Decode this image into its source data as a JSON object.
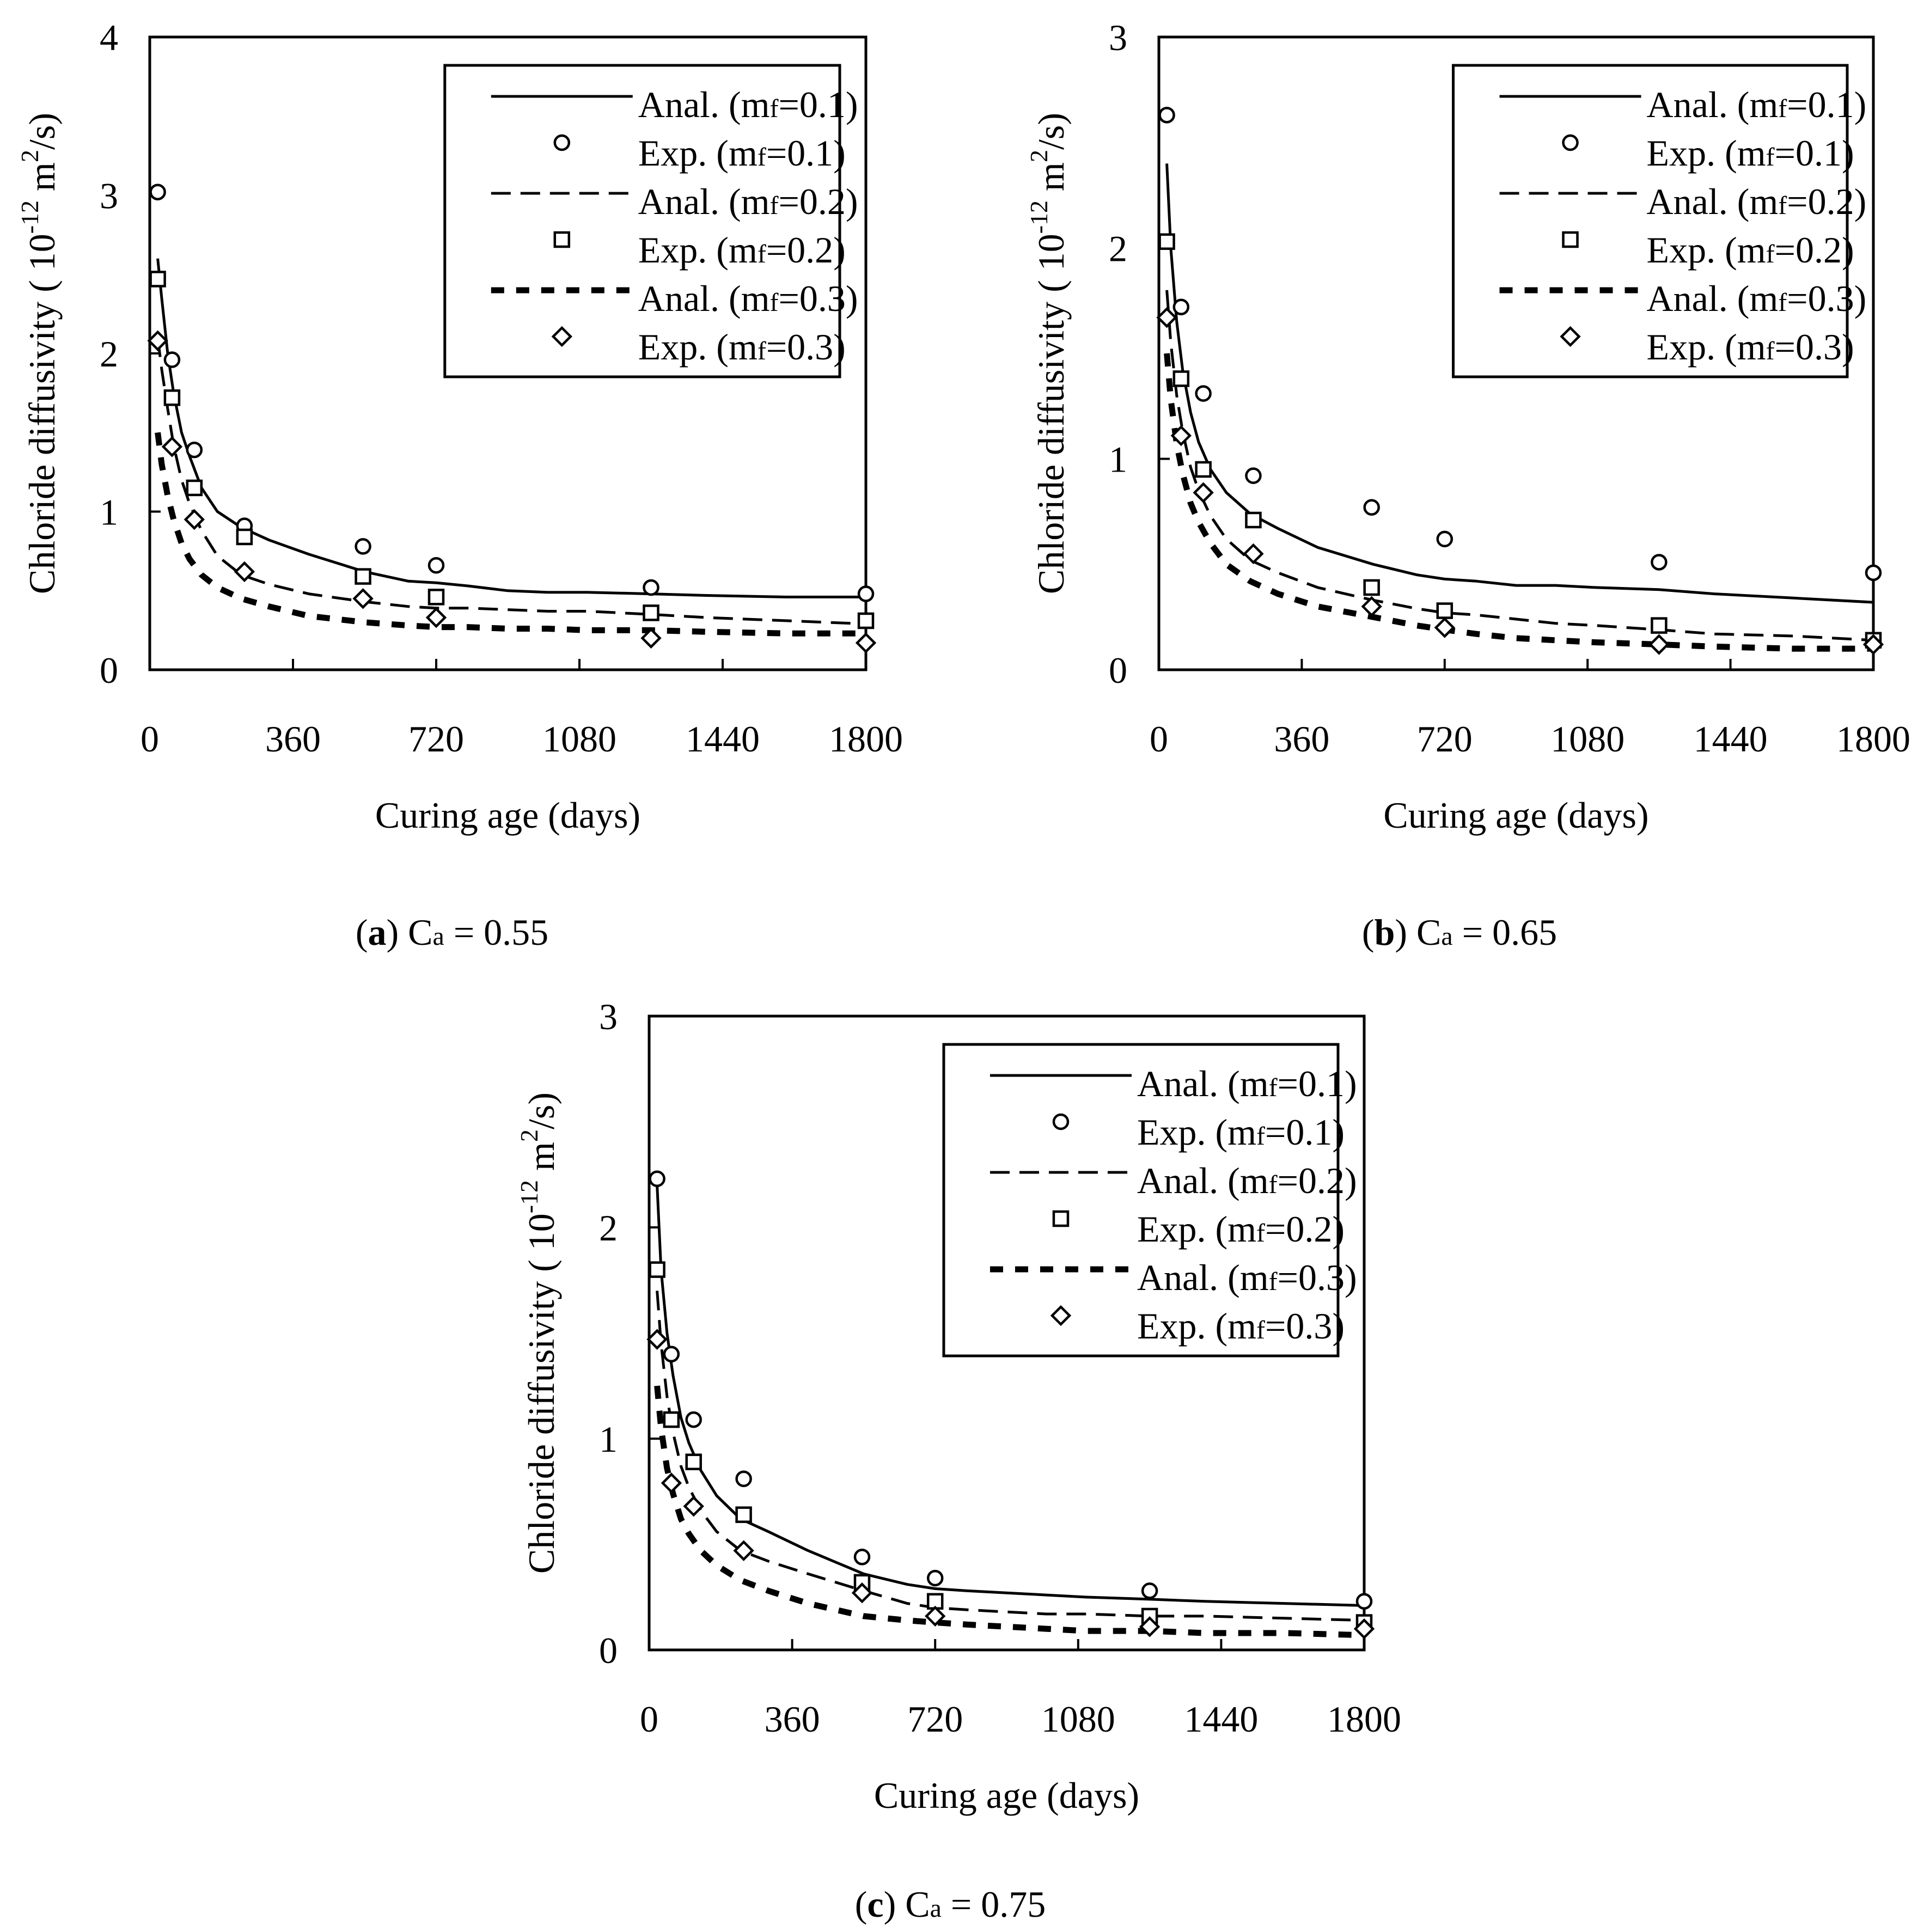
{
  "figure": {
    "panels": [
      "(a)",
      "(b)",
      "(c)"
    ]
  },
  "chart_data": [
    {
      "type": "line",
      "panel_letter": "a",
      "caption_rest": " C",
      "caption_sub": "a",
      "caption_value": " = 0.55",
      "xlabel": "Curing age (days)",
      "ylabel": "Chloride diffusivity ( 10",
      "ylabel_exp": "-12",
      "ylabel_unit": " m",
      "ylabel_unit_exp": "2",
      "ylabel_end": "/s)",
      "xlim": [
        0,
        1800
      ],
      "ylim": [
        0,
        4
      ],
      "xticks": [
        0,
        360,
        720,
        1080,
        1440,
        1800
      ],
      "yticks": [
        0,
        1,
        2,
        3,
        4
      ],
      "legend_position": "top-right",
      "analytical": [
        {
          "name": "Anal. (mf=0.1)",
          "legend_pre": "Anal. (m",
          "legend_sub": "f",
          "legend_post": "=0.1)",
          "style": "solid",
          "x": [
            20,
            30,
            45,
            60,
            80,
            100,
            130,
            170,
            230,
            300,
            400,
            540,
            650,
            720,
            800,
            900,
            1000,
            1100,
            1260,
            1400,
            1600,
            1800
          ],
          "y": [
            2.6,
            2.35,
            2.0,
            1.75,
            1.5,
            1.35,
            1.15,
            1.0,
            0.9,
            0.82,
            0.73,
            0.62,
            0.56,
            0.55,
            0.53,
            0.5,
            0.49,
            0.49,
            0.48,
            0.47,
            0.46,
            0.46
          ]
        },
        {
          "name": "Anal. (mf=0.2)",
          "legend_pre": "Anal. (m",
          "legend_sub": "f",
          "legend_post": "=0.2)",
          "style": "dash",
          "x": [
            20,
            30,
            45,
            60,
            80,
            100,
            130,
            170,
            230,
            300,
            400,
            540,
            650,
            720,
            800,
            900,
            1000,
            1100,
            1260,
            1400,
            1600,
            1800
          ],
          "y": [
            2.1,
            1.9,
            1.65,
            1.42,
            1.2,
            1.05,
            0.88,
            0.72,
            0.6,
            0.54,
            0.48,
            0.43,
            0.4,
            0.39,
            0.39,
            0.38,
            0.37,
            0.37,
            0.35,
            0.33,
            0.31,
            0.29
          ]
        },
        {
          "name": "Anal. (mf=0.3)",
          "legend_pre": "Anal. (m",
          "legend_sub": "f",
          "legend_post": "=0.3)",
          "style": "bolddash",
          "x": [
            20,
            30,
            45,
            60,
            80,
            100,
            130,
            170,
            230,
            300,
            400,
            540,
            650,
            720,
            800,
            900,
            1000,
            1100,
            1260,
            1400,
            1600,
            1800
          ],
          "y": [
            1.5,
            1.3,
            1.1,
            0.95,
            0.8,
            0.7,
            0.6,
            0.52,
            0.45,
            0.4,
            0.34,
            0.3,
            0.28,
            0.27,
            0.27,
            0.26,
            0.26,
            0.25,
            0.25,
            0.24,
            0.23,
            0.23
          ]
        }
      ],
      "experimental": [
        {
          "name": "Exp. (mf=0.1)",
          "legend_pre": "Exp. (m",
          "legend_sub": "f",
          "legend_post": "=0.1)",
          "marker": "circle",
          "x": [
            20,
            56,
            112,
            238,
            536,
            720,
            1260,
            1800
          ],
          "y": [
            3.02,
            1.96,
            1.39,
            0.91,
            0.78,
            0.66,
            0.52,
            0.48
          ]
        },
        {
          "name": "Exp. (mf=0.2)",
          "legend_pre": "Exp. (m",
          "legend_sub": "f",
          "legend_post": "=0.2)",
          "marker": "square",
          "x": [
            20,
            56,
            112,
            238,
            536,
            720,
            1260,
            1800
          ],
          "y": [
            2.47,
            1.72,
            1.15,
            0.84,
            0.59,
            0.46,
            0.36,
            0.31
          ]
        },
        {
          "name": "Exp. (mf=0.3)",
          "legend_pre": "Exp. (m",
          "legend_sub": "f",
          "legend_post": "=0.3)",
          "marker": "diamond",
          "x": [
            20,
            56,
            112,
            238,
            536,
            720,
            1260,
            1800
          ],
          "y": [
            2.08,
            1.41,
            0.95,
            0.62,
            0.45,
            0.33,
            0.2,
            0.17
          ]
        }
      ]
    },
    {
      "type": "line",
      "panel_letter": "b",
      "caption_rest": " C",
      "caption_sub": "a",
      "caption_value": " = 0.65",
      "xlabel": "Curing age (days)",
      "ylabel": "Chloride diffusivity ( 10",
      "ylabel_exp": "-12",
      "ylabel_unit": " m",
      "ylabel_unit_exp": "2",
      "ylabel_end": "/s)",
      "xlim": [
        0,
        1800
      ],
      "ylim": [
        0,
        3
      ],
      "xticks": [
        0,
        360,
        720,
        1080,
        1440,
        1800
      ],
      "yticks": [
        0,
        1,
        2,
        3
      ],
      "legend_position": "top-right",
      "analytical": [
        {
          "name": "Anal. (mf=0.1)",
          "legend_pre": "Anal. (m",
          "legend_sub": "f",
          "legend_post": "=0.1)",
          "style": "solid",
          "x": [
            20,
            30,
            45,
            60,
            80,
            100,
            130,
            170,
            230,
            300,
            400,
            540,
            650,
            720,
            800,
            900,
            1000,
            1100,
            1260,
            1400,
            1600,
            1800
          ],
          "y": [
            2.4,
            2.0,
            1.65,
            1.42,
            1.22,
            1.08,
            0.95,
            0.84,
            0.74,
            0.67,
            0.58,
            0.5,
            0.45,
            0.43,
            0.42,
            0.4,
            0.4,
            0.39,
            0.38,
            0.36,
            0.34,
            0.32
          ]
        },
        {
          "name": "Anal. (mf=0.2)",
          "legend_pre": "Anal. (m",
          "legend_sub": "f",
          "legend_post": "=0.2)",
          "style": "dash",
          "x": [
            20,
            30,
            45,
            60,
            80,
            100,
            130,
            170,
            230,
            300,
            400,
            540,
            650,
            720,
            800,
            900,
            1000,
            1100,
            1260,
            1400,
            1600,
            1800
          ],
          "y": [
            1.8,
            1.55,
            1.3,
            1.13,
            0.96,
            0.85,
            0.73,
            0.62,
            0.52,
            0.46,
            0.39,
            0.33,
            0.29,
            0.27,
            0.26,
            0.24,
            0.22,
            0.21,
            0.19,
            0.17,
            0.16,
            0.14
          ]
        },
        {
          "name": "Anal. (mf=0.3)",
          "legend_pre": "Anal. (m",
          "legend_sub": "f",
          "legend_post": "=0.3)",
          "style": "bolddash",
          "x": [
            20,
            30,
            45,
            60,
            80,
            100,
            130,
            170,
            230,
            300,
            400,
            540,
            650,
            720,
            800,
            900,
            1000,
            1100,
            1260,
            1400,
            1600,
            1800
          ],
          "y": [
            1.5,
            1.28,
            1.07,
            0.93,
            0.79,
            0.7,
            0.6,
            0.5,
            0.42,
            0.36,
            0.3,
            0.25,
            0.21,
            0.19,
            0.17,
            0.15,
            0.14,
            0.13,
            0.12,
            0.11,
            0.1,
            0.1
          ]
        }
      ],
      "experimental": [
        {
          "name": "Exp. (mf=0.1)",
          "legend_pre": "Exp. (m",
          "legend_sub": "f",
          "legend_post": "=0.1)",
          "marker": "circle",
          "x": [
            20,
            56,
            112,
            238,
            536,
            720,
            1260,
            1800
          ],
          "y": [
            2.63,
            1.72,
            1.31,
            0.92,
            0.77,
            0.62,
            0.51,
            0.46
          ]
        },
        {
          "name": "Exp. (mf=0.2)",
          "legend_pre": "Exp. (m",
          "legend_sub": "f",
          "legend_post": "=0.2)",
          "marker": "square",
          "x": [
            20,
            56,
            112,
            238,
            536,
            720,
            1260,
            1800
          ],
          "y": [
            2.03,
            1.38,
            0.95,
            0.71,
            0.39,
            0.28,
            0.21,
            0.14
          ]
        },
        {
          "name": "Exp. (mf=0.3)",
          "legend_pre": "Exp. (m",
          "legend_sub": "f",
          "legend_post": "=0.3)",
          "marker": "diamond",
          "x": [
            20,
            56,
            112,
            238,
            536,
            720,
            1260,
            1800
          ],
          "y": [
            1.67,
            1.11,
            0.84,
            0.55,
            0.3,
            0.2,
            0.12,
            0.12
          ]
        }
      ]
    },
    {
      "type": "line",
      "panel_letter": "c",
      "caption_rest": " C",
      "caption_sub": "a",
      "caption_value": " = 0.75",
      "xlabel": "Curing age (days)",
      "ylabel": "Chloride diffusivity ( 10",
      "ylabel_exp": "-12",
      "ylabel_unit": " m",
      "ylabel_unit_exp": "2",
      "ylabel_end": "/s)",
      "xlim": [
        0,
        1800
      ],
      "ylim": [
        0,
        3
      ],
      "xticks": [
        0,
        360,
        720,
        1080,
        1440,
        1800
      ],
      "yticks": [
        0,
        1,
        2,
        3
      ],
      "legend_position": "top-right",
      "analytical": [
        {
          "name": "Anal. (mf=0.1)",
          "legend_pre": "Anal. (m",
          "legend_sub": "f",
          "legend_post": "=0.1)",
          "style": "solid",
          "x": [
            20,
            30,
            45,
            60,
            80,
            100,
            130,
            170,
            230,
            300,
            400,
            540,
            650,
            720,
            800,
            900,
            1000,
            1100,
            1260,
            1400,
            1600,
            1800
          ],
          "y": [
            2.2,
            1.8,
            1.5,
            1.3,
            1.1,
            0.98,
            0.85,
            0.73,
            0.62,
            0.56,
            0.47,
            0.36,
            0.31,
            0.29,
            0.28,
            0.27,
            0.26,
            0.25,
            0.24,
            0.23,
            0.22,
            0.21
          ]
        },
        {
          "name": "Anal. (mf=0.2)",
          "legend_pre": "Anal. (m",
          "legend_sub": "f",
          "legend_post": "=0.2)",
          "style": "dash",
          "x": [
            20,
            30,
            45,
            60,
            80,
            100,
            130,
            170,
            230,
            300,
            400,
            540,
            650,
            720,
            800,
            900,
            1000,
            1100,
            1260,
            1400,
            1600,
            1800
          ],
          "y": [
            1.7,
            1.45,
            1.2,
            1.03,
            0.87,
            0.77,
            0.66,
            0.56,
            0.47,
            0.42,
            0.36,
            0.28,
            0.22,
            0.2,
            0.19,
            0.18,
            0.17,
            0.17,
            0.16,
            0.16,
            0.15,
            0.14
          ]
        },
        {
          "name": "Anal. (mf=0.3)",
          "legend_pre": "Anal. (m",
          "legend_sub": "f",
          "legend_post": "=0.3)",
          "style": "bolddash",
          "x": [
            20,
            30,
            45,
            60,
            80,
            100,
            130,
            170,
            230,
            300,
            400,
            540,
            650,
            720,
            800,
            900,
            1000,
            1100,
            1260,
            1400,
            1600,
            1800
          ],
          "y": [
            1.25,
            1.05,
            0.86,
            0.74,
            0.62,
            0.55,
            0.47,
            0.4,
            0.33,
            0.28,
            0.22,
            0.16,
            0.14,
            0.13,
            0.12,
            0.11,
            0.1,
            0.09,
            0.09,
            0.08,
            0.08,
            0.07
          ]
        }
      ],
      "experimental": [
        {
          "name": "Exp. (mf=0.1)",
          "legend_pre": "Exp. (m",
          "legend_sub": "f",
          "legend_post": "=0.1)",
          "marker": "circle",
          "x": [
            20,
            56,
            112,
            238,
            536,
            720,
            1260,
            1800
          ],
          "y": [
            2.23,
            1.4,
            1.09,
            0.81,
            0.44,
            0.34,
            0.28,
            0.23
          ]
        },
        {
          "name": "Exp. (mf=0.2)",
          "legend_pre": "Exp. (m",
          "legend_sub": "f",
          "legend_post": "=0.2)",
          "marker": "square",
          "x": [
            20,
            56,
            112,
            238,
            536,
            720,
            1260,
            1800
          ],
          "y": [
            1.8,
            1.09,
            0.89,
            0.64,
            0.32,
            0.23,
            0.16,
            0.13
          ]
        },
        {
          "name": "Exp. (mf=0.3)",
          "legend_pre": "Exp. (m",
          "legend_sub": "f",
          "legend_post": "=0.3)",
          "marker": "diamond",
          "x": [
            20,
            56,
            112,
            238,
            536,
            720,
            1260,
            1800
          ],
          "y": [
            1.47,
            0.79,
            0.68,
            0.47,
            0.27,
            0.16,
            0.11,
            0.1
          ]
        }
      ]
    }
  ]
}
